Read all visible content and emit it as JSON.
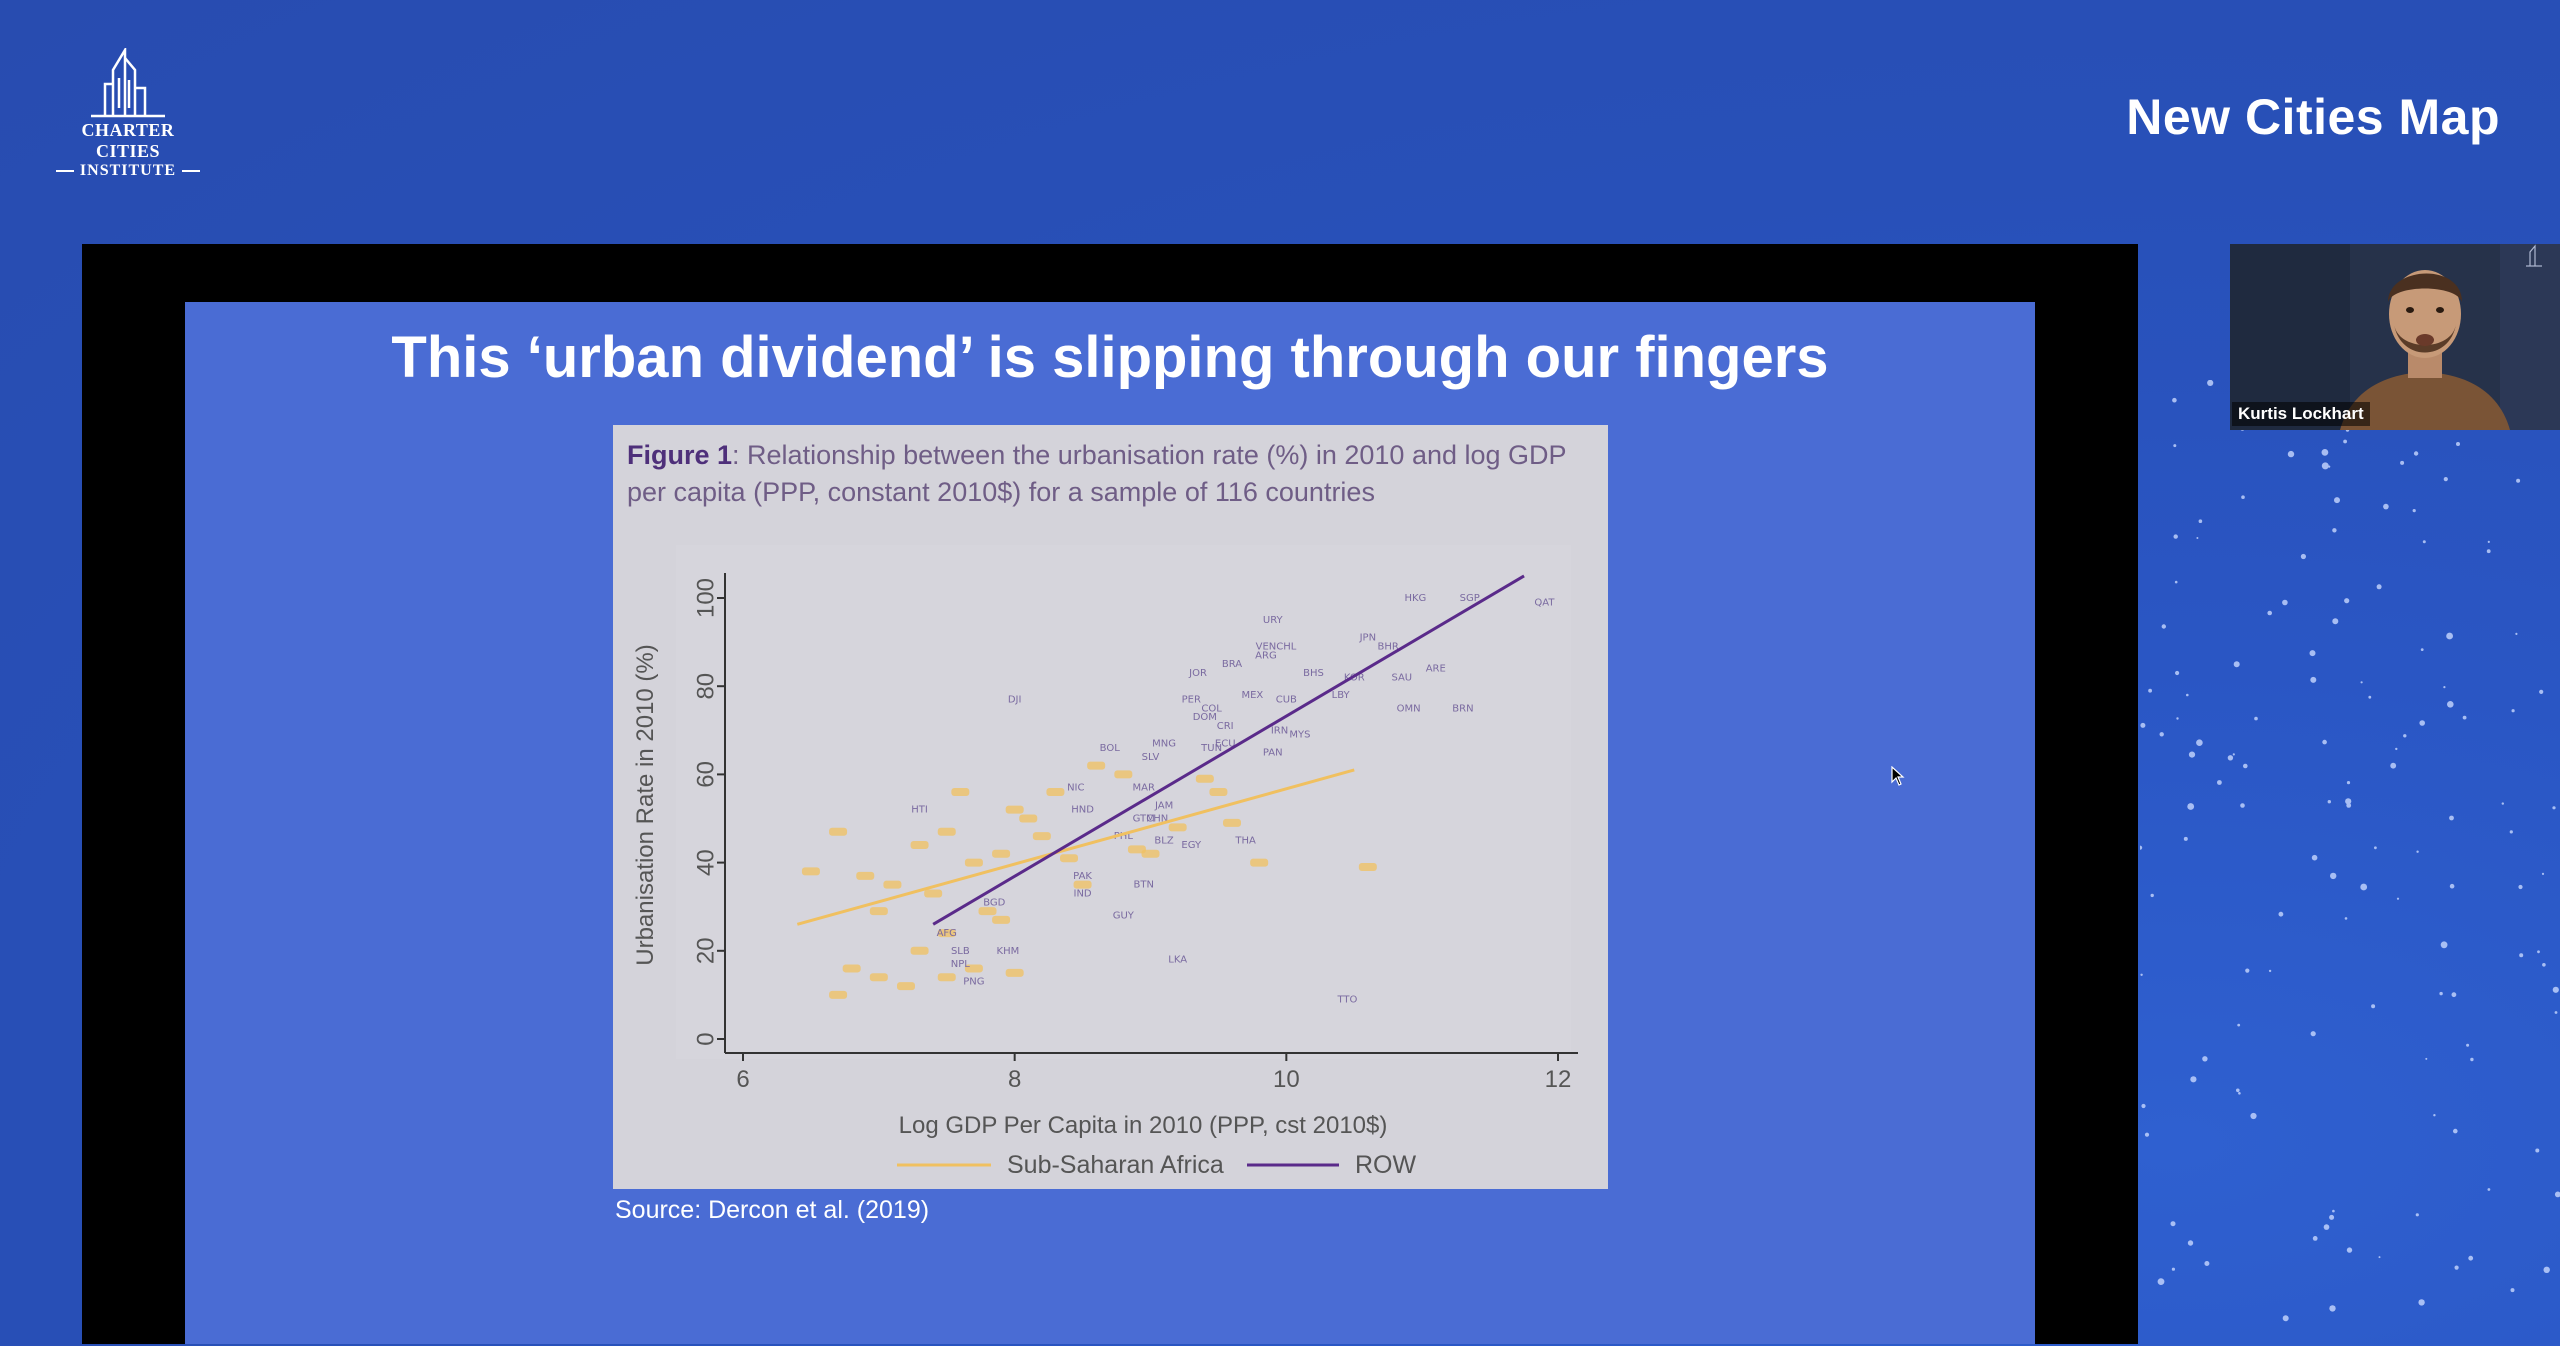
{
  "brand": {
    "logo_line1": "CHARTER CITIES",
    "logo_line2": "INSTITUTE",
    "title": "New Cities Map"
  },
  "slide": {
    "title": "This ‘urban dividend’ is slipping through our fingers",
    "figure_label": "Figure 1",
    "figure_caption": ": Relationship between the urbanisation rate (%) in 2010 and log GDP per capita (PPP, constant 2010$) for a sample of 116 countries",
    "source": "Source: Dercon et al. (2019)"
  },
  "video": {
    "participant_name": "Kurtis Lockhart"
  },
  "colors": {
    "ssa": "#f0c060",
    "row": "#5a2a8a",
    "row_label": "#7a6aa0"
  },
  "chart_data": {
    "type": "scatter",
    "xlabel": "Log GDP Per Capita in 2010 (PPP, cst 2010$)",
    "ylabel": "Urbanisation Rate in 2010 (%)",
    "xlim": [
      6,
      12
    ],
    "ylim": [
      0,
      100
    ],
    "xticks": [
      6,
      8,
      10,
      12
    ],
    "yticks": [
      0,
      20,
      40,
      60,
      80,
      100
    ],
    "legend_position": "bottom",
    "series": [
      {
        "name": "Sub-Saharan Africa",
        "fit": [
          [
            6.4,
            26
          ],
          [
            10.5,
            61
          ]
        ],
        "points": [
          [
            6.5,
            38
          ],
          [
            6.7,
            47
          ],
          [
            6.9,
            37
          ],
          [
            7.0,
            29
          ],
          [
            7.1,
            35
          ],
          [
            7.3,
            44
          ],
          [
            7.4,
            33
          ],
          [
            7.5,
            47
          ],
          [
            7.6,
            56
          ],
          [
            7.7,
            40
          ],
          [
            7.8,
            29
          ],
          [
            7.9,
            42
          ],
          [
            8.0,
            52
          ],
          [
            8.1,
            50
          ],
          [
            8.2,
            46
          ],
          [
            8.3,
            56
          ],
          [
            8.4,
            41
          ],
          [
            8.5,
            35
          ],
          [
            8.6,
            62
          ],
          [
            8.8,
            60
          ],
          [
            8.9,
            43
          ],
          [
            9.0,
            42
          ],
          [
            9.2,
            48
          ],
          [
            9.4,
            59
          ],
          [
            9.5,
            56
          ],
          [
            9.6,
            49
          ],
          [
            9.8,
            40
          ],
          [
            10.6,
            39
          ],
          [
            6.8,
            16
          ],
          [
            7.0,
            14
          ],
          [
            7.2,
            12
          ],
          [
            7.3,
            20
          ],
          [
            7.5,
            24
          ],
          [
            7.7,
            16
          ],
          [
            7.9,
            27
          ],
          [
            8.0,
            15
          ],
          [
            6.7,
            10
          ],
          [
            7.5,
            14
          ]
        ]
      },
      {
        "name": "ROW",
        "fit": [
          [
            7.4,
            26
          ],
          [
            11.75,
            105
          ]
        ],
        "points": [
          {
            "label": "HKG",
            "x": 10.95,
            "y": 100
          },
          {
            "label": "SGP",
            "x": 11.35,
            "y": 100
          },
          {
            "label": "QAT",
            "x": 11.9,
            "y": 99
          },
          {
            "label": "URY",
            "x": 9.9,
            "y": 95
          },
          {
            "label": "JPN",
            "x": 10.6,
            "y": 91
          },
          {
            "label": "BHR",
            "x": 10.75,
            "y": 89
          },
          {
            "label": "VEN",
            "x": 9.85,
            "y": 89
          },
          {
            "label": "CHL",
            "x": 10.0,
            "y": 89
          },
          {
            "label": "ARG",
            "x": 9.85,
            "y": 87
          },
          {
            "label": "BRA",
            "x": 9.6,
            "y": 85
          },
          {
            "label": "ARE",
            "x": 11.1,
            "y": 84
          },
          {
            "label": "JOR",
            "x": 9.35,
            "y": 83
          },
          {
            "label": "BHS",
            "x": 10.2,
            "y": 83
          },
          {
            "label": "KOR",
            "x": 10.5,
            "y": 82
          },
          {
            "label": "SAU",
            "x": 10.85,
            "y": 82
          },
          {
            "label": "DJI",
            "x": 8.0,
            "y": 77
          },
          {
            "label": "PER",
            "x": 9.3,
            "y": 77
          },
          {
            "label": "MEX",
            "x": 9.75,
            "y": 78
          },
          {
            "label": "CUB",
            "x": 10.0,
            "y": 77
          },
          {
            "label": "LBY",
            "x": 10.4,
            "y": 78
          },
          {
            "label": "OMN",
            "x": 10.9,
            "y": 75
          },
          {
            "label": "BRN",
            "x": 11.3,
            "y": 75
          },
          {
            "label": "COL",
            "x": 9.45,
            "y": 75
          },
          {
            "label": "DOM",
            "x": 9.4,
            "y": 73
          },
          {
            "label": "CRI",
            "x": 9.55,
            "y": 71
          },
          {
            "label": "BOL",
            "x": 8.7,
            "y": 66
          },
          {
            "label": "MNG",
            "x": 9.1,
            "y": 67
          },
          {
            "label": "MYS",
            "x": 10.1,
            "y": 69
          },
          {
            "label": "IRN",
            "x": 9.95,
            "y": 70
          },
          {
            "label": "ECU",
            "x": 9.55,
            "y": 67
          },
          {
            "label": "SLV",
            "x": 9.0,
            "y": 64
          },
          {
            "label": "TUN",
            "x": 9.45,
            "y": 66
          },
          {
            "label": "PAN",
            "x": 9.9,
            "y": 65
          },
          {
            "label": "NIC",
            "x": 8.45,
            "y": 57
          },
          {
            "label": "MAR",
            "x": 8.95,
            "y": 57
          },
          {
            "label": "HTI",
            "x": 7.3,
            "y": 52
          },
          {
            "label": "HND",
            "x": 8.5,
            "y": 52
          },
          {
            "label": "JAM",
            "x": 9.1,
            "y": 53
          },
          {
            "label": "GTM",
            "x": 8.95,
            "y": 50
          },
          {
            "label": "CHN",
            "x": 9.05,
            "y": 50
          },
          {
            "label": "PHL",
            "x": 8.8,
            "y": 46
          },
          {
            "label": "BLZ",
            "x": 9.1,
            "y": 45
          },
          {
            "label": "EGY",
            "x": 9.3,
            "y": 44
          },
          {
            "label": "THA",
            "x": 9.7,
            "y": 45
          },
          {
            "label": "PAK",
            "x": 8.5,
            "y": 37
          },
          {
            "label": "IND",
            "x": 8.5,
            "y": 33
          },
          {
            "label": "BTN",
            "x": 8.95,
            "y": 35
          },
          {
            "label": "BGD",
            "x": 7.85,
            "y": 31
          },
          {
            "label": "GUY",
            "x": 8.8,
            "y": 28
          },
          {
            "label": "AFG",
            "x": 7.5,
            "y": 24
          },
          {
            "label": "SLB",
            "x": 7.6,
            "y": 20
          },
          {
            "label": "KHM",
            "x": 7.95,
            "y": 20
          },
          {
            "label": "NPL",
            "x": 7.6,
            "y": 17
          },
          {
            "label": "PNG",
            "x": 7.7,
            "y": 13
          },
          {
            "label": "LKA",
            "x": 9.2,
            "y": 18
          },
          {
            "label": "TTO",
            "x": 10.45,
            "y": 9
          }
        ]
      }
    ]
  }
}
